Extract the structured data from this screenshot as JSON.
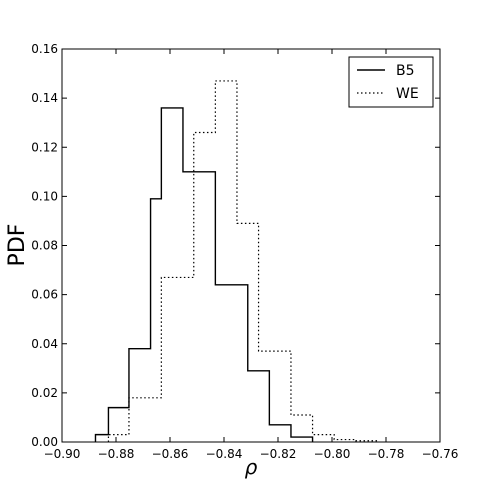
{
  "chart_data": {
    "type": "histogram",
    "xlabel": "ρ",
    "ylabel": "PDF",
    "xlim": [
      -0.9,
      -0.76
    ],
    "ylim": [
      0.0,
      0.16
    ],
    "xticks": [
      "−0.90",
      "−0.88",
      "−0.86",
      "−0.84",
      "−0.82",
      "−0.80",
      "−0.78",
      "−0.76"
    ],
    "xtick_values": [
      -0.9,
      -0.88,
      -0.86,
      -0.84,
      -0.82,
      -0.8,
      -0.78,
      -0.76
    ],
    "yticks": [
      "0.00",
      "0.02",
      "0.04",
      "0.06",
      "0.08",
      "0.10",
      "0.12",
      "0.14",
      "0.16"
    ],
    "ytick_values": [
      0.0,
      0.02,
      0.04,
      0.06,
      0.08,
      0.1,
      0.12,
      0.14,
      0.16
    ],
    "legend_position": "top-right",
    "series": [
      {
        "name": "B5",
        "style": "solid",
        "bin_edges": [
          -0.8876,
          -0.8828,
          -0.8752,
          -0.8672,
          -0.8632,
          -0.8552,
          -0.8512,
          -0.8432,
          -0.8392,
          -0.8312,
          -0.8232,
          -0.8152,
          -0.8072
        ],
        "values": [
          0.003,
          0.014,
          0.038,
          0.099,
          0.136,
          0.11,
          0.11,
          0.064,
          0.064,
          0.029,
          0.007,
          0.002
        ]
      },
      {
        "name": "WE",
        "style": "dotted",
        "bin_edges": [
          -0.8828,
          -0.8752,
          -0.8672,
          -0.8632,
          -0.8552,
          -0.8512,
          -0.8432,
          -0.8352,
          -0.8272,
          -0.8152,
          -0.8072,
          -0.7992,
          -0.7912,
          -0.7832
        ],
        "values": [
          0.003,
          0.018,
          0.018,
          0.067,
          0.067,
          0.126,
          0.147,
          0.089,
          0.037,
          0.011,
          0.003,
          0.001,
          0.0005
        ]
      }
    ]
  }
}
